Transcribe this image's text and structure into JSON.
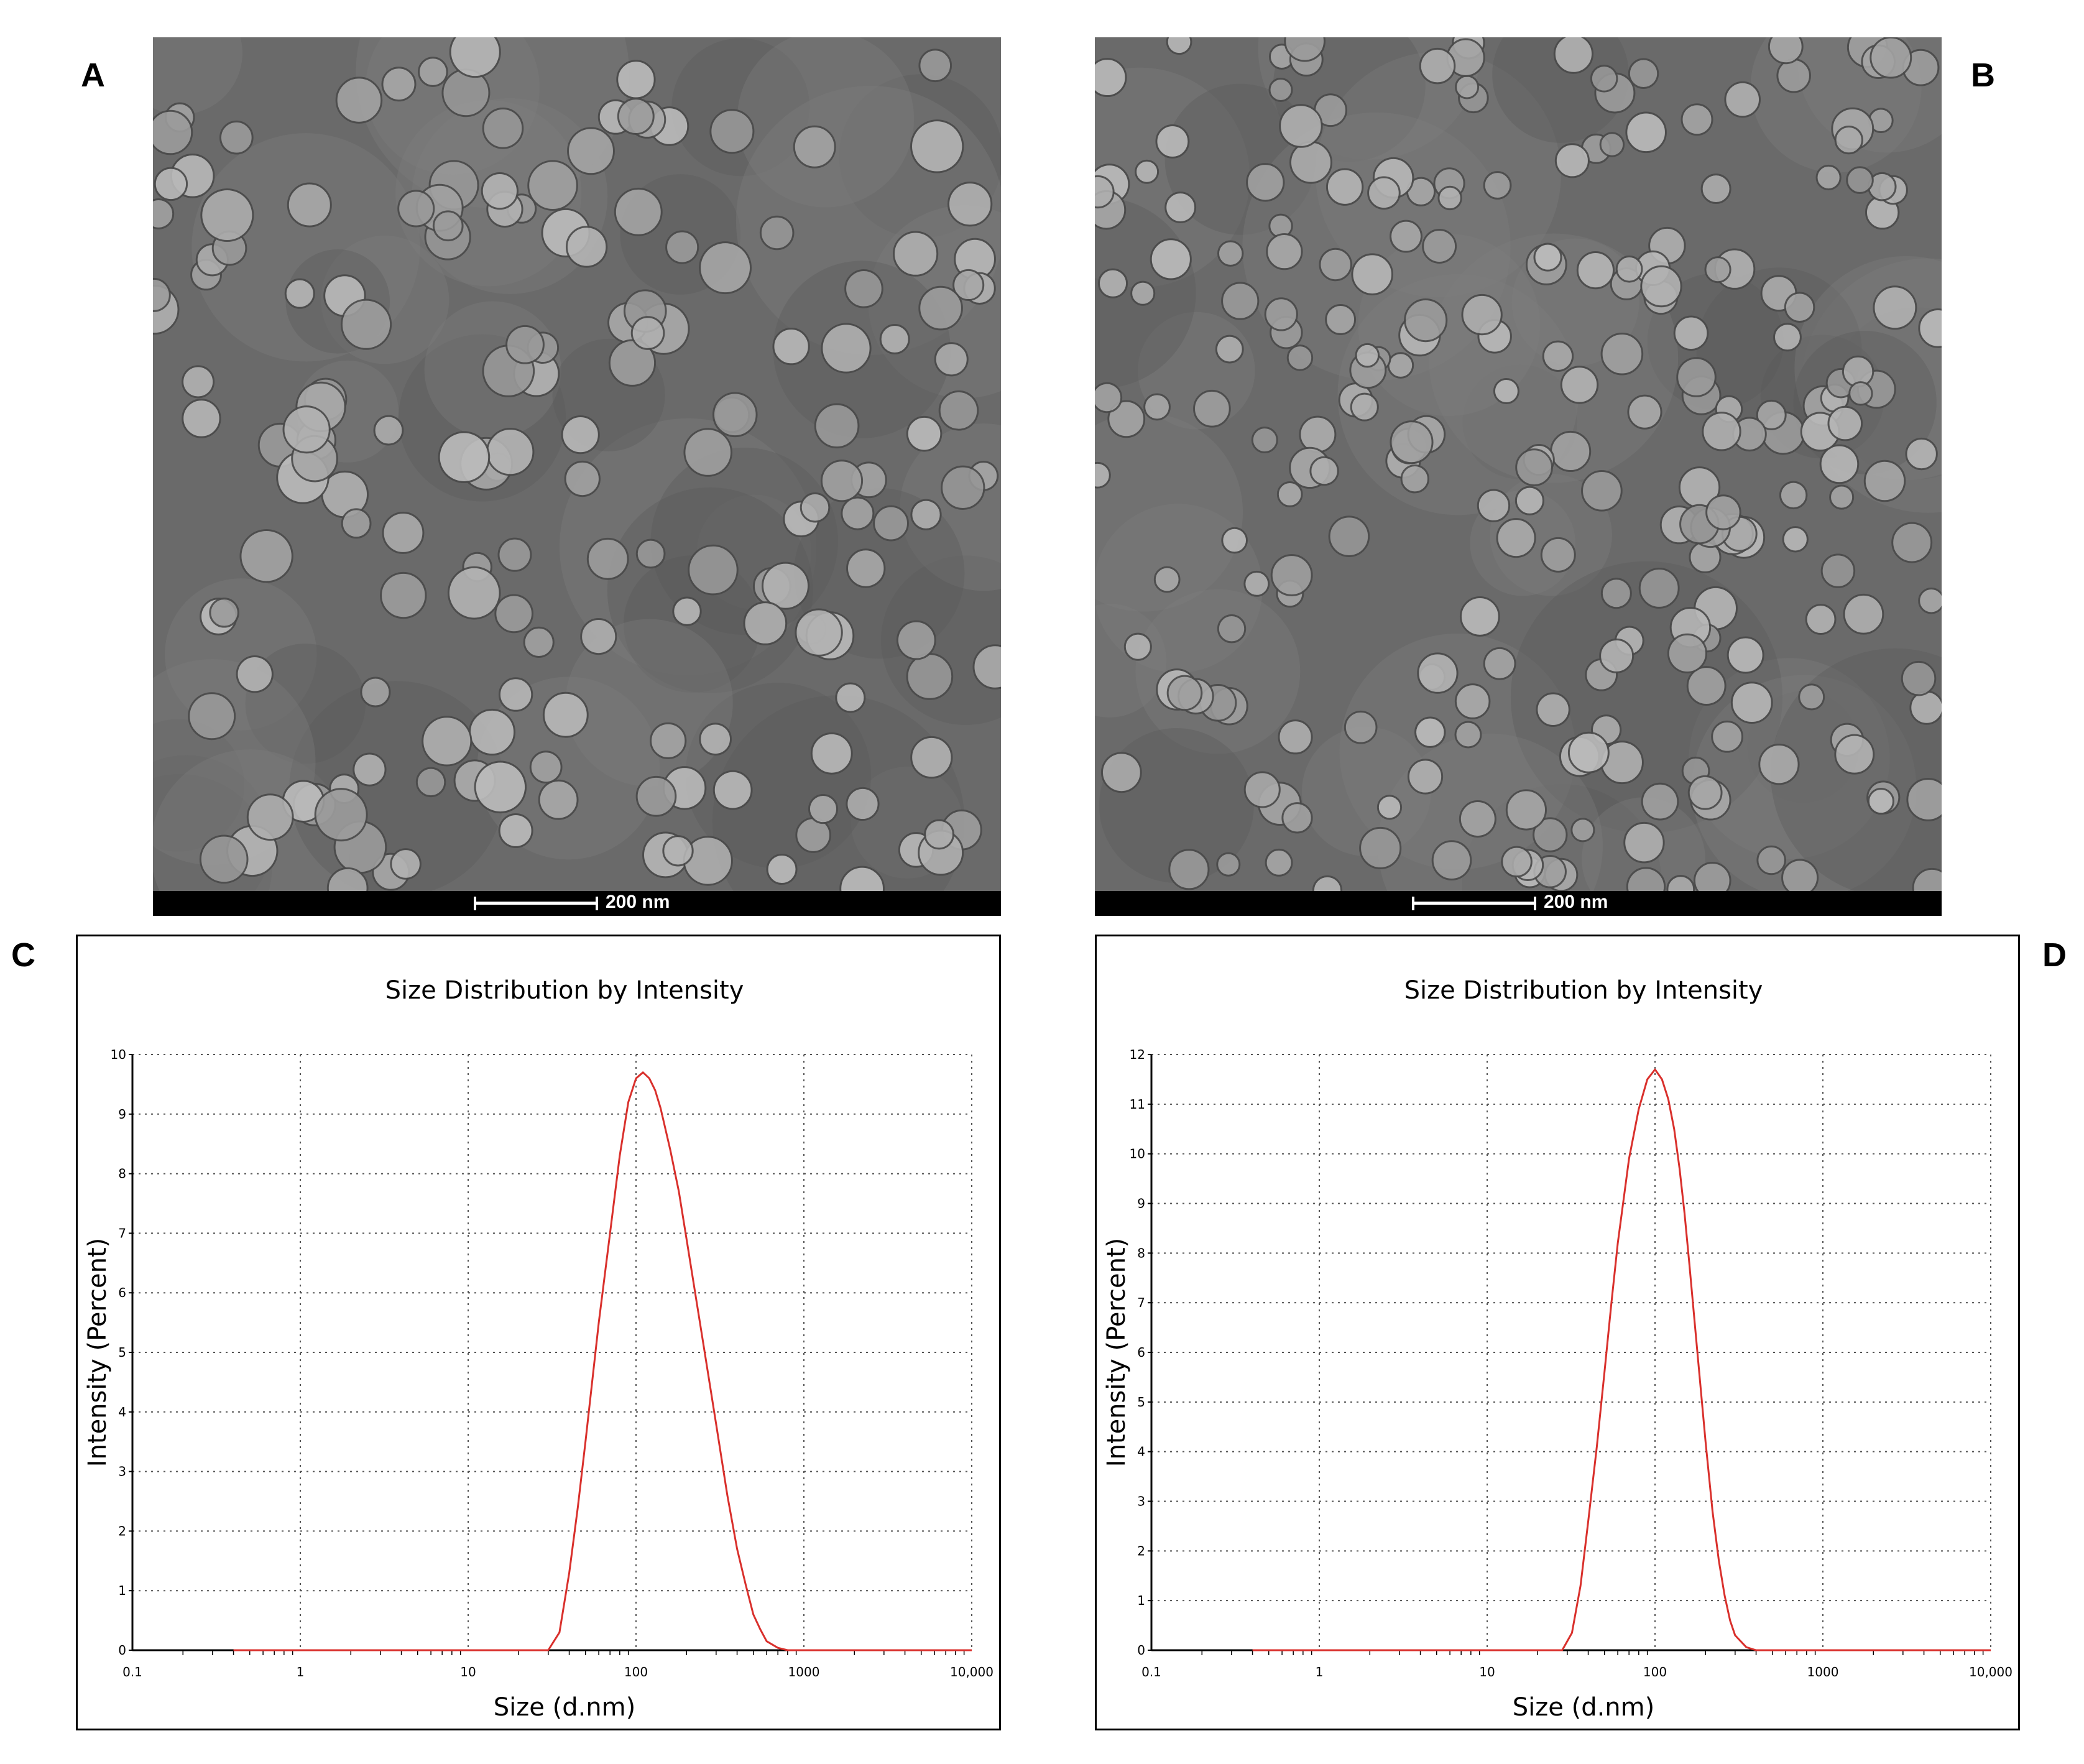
{
  "panels": {
    "a": {
      "letter": "A",
      "scale_label": "200 nm"
    },
    "b": {
      "letter": "B",
      "scale_label": "200 nm"
    },
    "c": {
      "letter": "C"
    },
    "d": {
      "letter": "D"
    }
  },
  "colors": {
    "curve": "#d9302c",
    "grid": "#555555",
    "tem_bg": "#6f6f6f"
  },
  "chart_data": [
    {
      "type": "line",
      "title": "Size Distribution by Intensity",
      "xlabel": "Size (d.nm)",
      "ylabel": "Intensity (Percent)",
      "x_scale": "log",
      "xlim": [
        0.1,
        10000
      ],
      "ylim": [
        0,
        10
      ],
      "x_tick_labels": [
        "0.1",
        "1",
        "10",
        "100",
        "1000",
        "10,000"
      ],
      "x_tick_values": [
        0.1,
        1,
        10,
        100,
        1000,
        10000
      ],
      "y_ticks": [
        0,
        1,
        2,
        3,
        4,
        5,
        6,
        7,
        8,
        9,
        10
      ],
      "grid": true,
      "series": [
        {
          "x": [
            0.4,
            20,
            30,
            35,
            40,
            45,
            50,
            60,
            70,
            80,
            90,
            100,
            110,
            120,
            130,
            140,
            160,
            180,
            200,
            250,
            300,
            350,
            400,
            450,
            500,
            550,
            600,
            700,
            800,
            10000
          ],
          "y": [
            0,
            0,
            0,
            0.3,
            1.3,
            2.4,
            3.5,
            5.5,
            7.0,
            8.3,
            9.2,
            9.6,
            9.7,
            9.6,
            9.4,
            9.1,
            8.4,
            7.7,
            6.9,
            5.2,
            3.8,
            2.6,
            1.7,
            1.1,
            0.6,
            0.35,
            0.15,
            0.04,
            0,
            0
          ]
        }
      ]
    },
    {
      "type": "line",
      "title": "Size Distribution by Intensity",
      "xlabel": "Size (d.nm)",
      "ylabel": "Intensity (Percent)",
      "x_scale": "log",
      "xlim": [
        0.1,
        10000
      ],
      "ylim": [
        0,
        12
      ],
      "x_tick_labels": [
        "0.1",
        "1",
        "10",
        "100",
        "1000",
        "10,000"
      ],
      "x_tick_values": [
        0.1,
        1,
        10,
        100,
        1000,
        10000
      ],
      "y_ticks": [
        0,
        1,
        2,
        3,
        4,
        5,
        6,
        7,
        8,
        9,
        10,
        11,
        12
      ],
      "grid": true,
      "series": [
        {
          "x": [
            0.4,
            20,
            28,
            32,
            36,
            40,
            45,
            50,
            55,
            60,
            70,
            80,
            90,
            100,
            110,
            120,
            130,
            140,
            150,
            160,
            180,
            200,
            220,
            240,
            260,
            280,
            300,
            350,
            400,
            10000
          ],
          "y": [
            0,
            0,
            0,
            0.35,
            1.3,
            2.6,
            4.1,
            5.6,
            7.0,
            8.2,
            9.9,
            10.9,
            11.5,
            11.7,
            11.5,
            11.1,
            10.5,
            9.7,
            8.8,
            7.8,
            5.9,
            4.2,
            2.8,
            1.8,
            1.1,
            0.6,
            0.3,
            0.06,
            0,
            0
          ]
        }
      ]
    }
  ]
}
